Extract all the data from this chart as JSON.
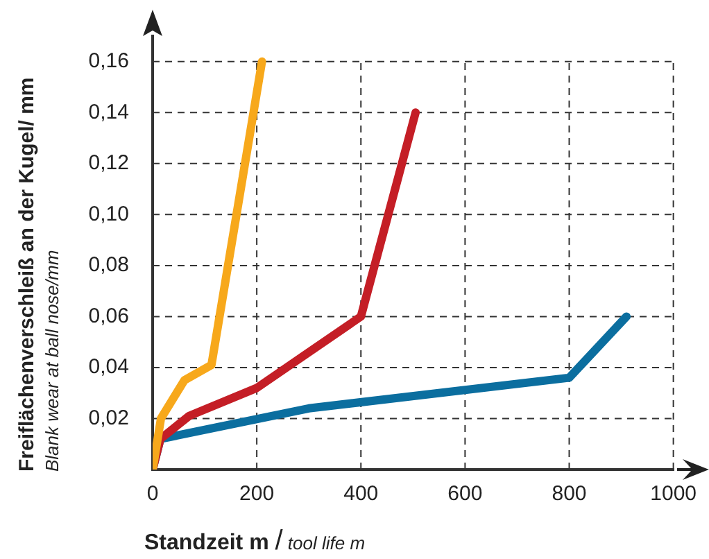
{
  "chart_data": {
    "type": "line",
    "xlabel": "Standzeit m / tool life m",
    "ylabel": "Freiflächenverschleiß an der Kugel/ mm\nBlank wear at ball nose/mm",
    "series": [
      {
        "color": "#f7a81b",
        "x": [
          0,
          16,
          61,
          113,
          210
        ],
        "values": [
          0,
          0.02,
          0.035,
          0.041,
          0.16
        ]
      },
      {
        "color": "#c41e26",
        "x": [
          0,
          15,
          70,
          200,
          400,
          505
        ],
        "values": [
          0,
          0.012,
          0.021,
          0.032,
          0.06,
          0.14
        ]
      },
      {
        "color": "#0b6e9f",
        "x": [
          0,
          15,
          300,
          800,
          910
        ],
        "values": [
          0,
          0.012,
          0.024,
          0.036,
          0.06
        ]
      }
    ],
    "xlim": [
      0,
      1000
    ],
    "xticks": [
      0,
      200,
      400,
      600,
      800,
      1000
    ],
    "ylim": [
      0,
      0.17
    ],
    "yticks": [
      {
        "value": 0.02,
        "label": "0,02"
      },
      {
        "value": 0.04,
        "label": "0,04"
      },
      {
        "value": 0.06,
        "label": "0,06"
      },
      {
        "value": 0.08,
        "label": "0,08"
      },
      {
        "value": 0.1,
        "label": "0,10"
      },
      {
        "value": 0.12,
        "label": "0,12"
      },
      {
        "value": 0.14,
        "label": "0,14"
      },
      {
        "value": 0.16,
        "label": "0,16"
      }
    ],
    "grid": true,
    "line_style": "solid"
  }
}
